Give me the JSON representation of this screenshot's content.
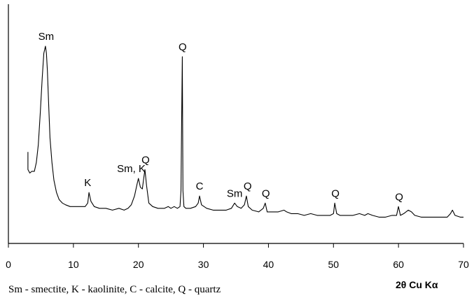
{
  "chart_data": {
    "type": "line",
    "title": "",
    "xlabel": "2θ Cu Kα",
    "ylabel": "",
    "xlim": [
      0,
      70
    ],
    "ylim": [
      0,
      100
    ],
    "x_ticks": [
      0,
      10,
      20,
      30,
      40,
      50,
      60,
      70
    ],
    "grid": false,
    "legend_text": "Sm - smectite, K - kaolinite, C - calcite, Q - quartz",
    "series": [
      {
        "x": [
          3.0,
          3.0,
          3.3,
          3.6,
          4.0,
          4.3,
          4.6,
          4.9,
          5.2,
          5.45,
          5.7,
          5.85,
          6.0,
          6.2,
          6.4,
          6.7,
          7.0,
          7.4,
          7.8,
          8.3,
          8.8,
          9.5,
          10.2,
          11.0,
          11.8,
          12.2,
          12.4,
          12.7,
          13.2,
          14.0,
          15.0,
          16.0,
          17.0,
          17.8,
          18.4,
          18.9,
          19.4,
          19.8,
          20.0,
          20.3,
          20.6,
          20.85,
          21.0,
          21.25,
          21.6,
          22.2,
          23.0,
          24.0,
          24.6,
          25.0,
          25.5,
          26.0,
          26.4,
          26.55,
          26.65,
          26.75,
          26.85,
          27.0,
          27.3,
          28.0,
          28.8,
          29.2,
          29.4,
          29.7,
          30.5,
          31.5,
          32.5,
          33.5,
          34.3,
          34.8,
          35.2,
          35.8,
          36.3,
          36.6,
          36.9,
          37.5,
          38.5,
          39.2,
          39.5,
          39.8,
          40.5,
          41.5,
          42.4,
          42.8,
          43.5,
          44.5,
          45.5,
          46.5,
          47.5,
          48.5,
          49.5,
          50.0,
          50.2,
          50.5,
          51.0,
          52.0,
          53.0,
          54.0,
          54.8,
          55.3,
          56.0,
          57.0,
          58.0,
          59.0,
          59.7,
          60.0,
          60.3,
          60.8,
          61.5,
          62.0,
          62.5,
          63.5,
          64.5,
          65.5,
          66.5,
          67.5,
          68.0,
          68.3,
          68.7,
          69.5,
          70.0
        ],
        "values": [
          40,
          30,
          28,
          29,
          29,
          34,
          44,
          62,
          82,
          96,
          100,
          96,
          86,
          66,
          48,
          34,
          24,
          17,
          13,
          11,
          10,
          9,
          9,
          9,
          9,
          11,
          17,
          12,
          9,
          8,
          8,
          7,
          8,
          7,
          8,
          10,
          15,
          22,
          25,
          20,
          19,
          26,
          30,
          21,
          11,
          9,
          8,
          8,
          9,
          8,
          9,
          8,
          9,
          18,
          60,
          94,
          18,
          9,
          8,
          8,
          9,
          11,
          15,
          10,
          8,
          7,
          7,
          7,
          8,
          11,
          9,
          8,
          10,
          15,
          9,
          7,
          6,
          8,
          11,
          6,
          6,
          6,
          7,
          6,
          5,
          5,
          4,
          5,
          4,
          4,
          4,
          5,
          11,
          5,
          4,
          4,
          4,
          5,
          4,
          5,
          4,
          3,
          3,
          4,
          4,
          9,
          4,
          5,
          7,
          6,
          4,
          3,
          3,
          3,
          3,
          3,
          5,
          7,
          4,
          3,
          3
        ]
      }
    ],
    "annotations": [
      {
        "text": "Sm",
        "x": 5.8,
        "y": 100
      },
      {
        "text": "K",
        "x": 12.2,
        "y": 17
      },
      {
        "text": "Sm, K",
        "x": 18.9,
        "y": 25
      },
      {
        "text": "Q",
        "x": 21.1,
        "y": 30
      },
      {
        "text": "Q",
        "x": 26.8,
        "y": 94
      },
      {
        "text": "C",
        "x": 29.4,
        "y": 15
      },
      {
        "text": "Sm",
        "x": 34.8,
        "y": 11
      },
      {
        "text": "Q",
        "x": 36.8,
        "y": 15
      },
      {
        "text": "Q",
        "x": 39.6,
        "y": 11
      },
      {
        "text": "Q",
        "x": 50.3,
        "y": 11
      },
      {
        "text": "Q",
        "x": 60.1,
        "y": 9
      }
    ]
  }
}
